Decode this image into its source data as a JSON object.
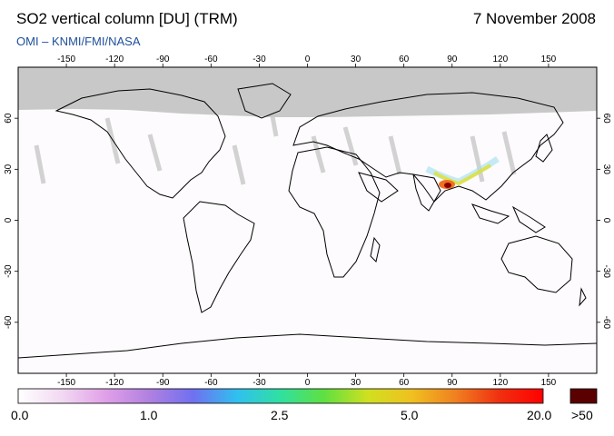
{
  "header": {
    "title": "SO2 vertical column [DU] (TRM)",
    "date": "7 November 2008",
    "subtitle": "OMI  –  KNMI/FMI/NASA"
  },
  "map": {
    "lon_ticks": [
      "-150",
      "-120",
      "-90",
      "-60",
      "-30",
      "0",
      "30",
      "60",
      "90",
      "120",
      "150"
    ],
    "lat_ticks": [
      "60",
      "30",
      "0",
      "-30",
      "-60"
    ],
    "colors": {
      "polar_night": "#c8c8c8",
      "coast": "#000000",
      "orbit_streak": "#c9c9c9",
      "hotspot_core": "#8b0000"
    }
  },
  "colorbar": {
    "labels": [
      "0.0",
      "1.0",
      "2.5",
      "5.0",
      "20.0",
      ">50"
    ],
    "stops": [
      "#ffffff",
      "#f2d9f2",
      "#e0a0e8",
      "#b080e0",
      "#7070f0",
      "#30c0f0",
      "#30e0a0",
      "#60e040",
      "#d0e020",
      "#f0c020",
      "#f08020",
      "#f03010",
      "#ff0000"
    ],
    "max_color": "#5a0000"
  }
}
